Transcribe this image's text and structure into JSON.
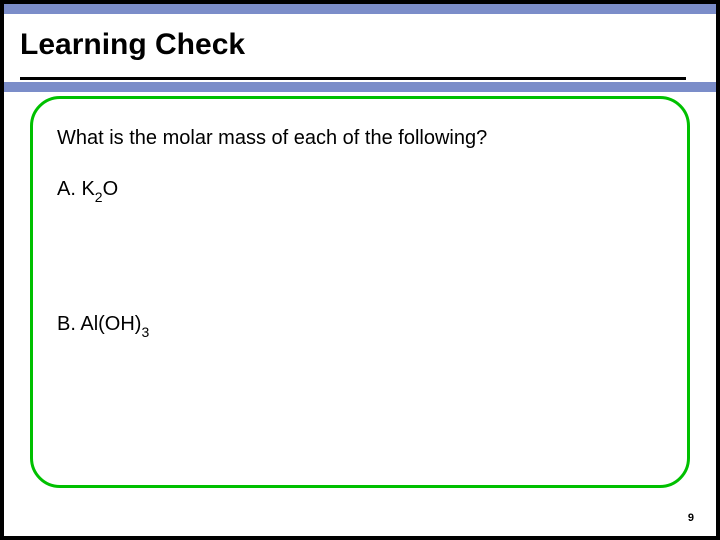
{
  "title": "Learning Check",
  "question": "What is the molar mass of each of the following?",
  "options": {
    "a": {
      "prefix": "A.  K",
      "sub1": "2",
      "suffix": "O"
    },
    "b": {
      "prefix": "B. Al(OH)",
      "sub1": "3",
      "suffix": ""
    }
  },
  "page_number": "9",
  "colors": {
    "header_stripe": "#7b8dc9",
    "border": "#00c000",
    "background": "#ffffff",
    "text": "#000000"
  }
}
